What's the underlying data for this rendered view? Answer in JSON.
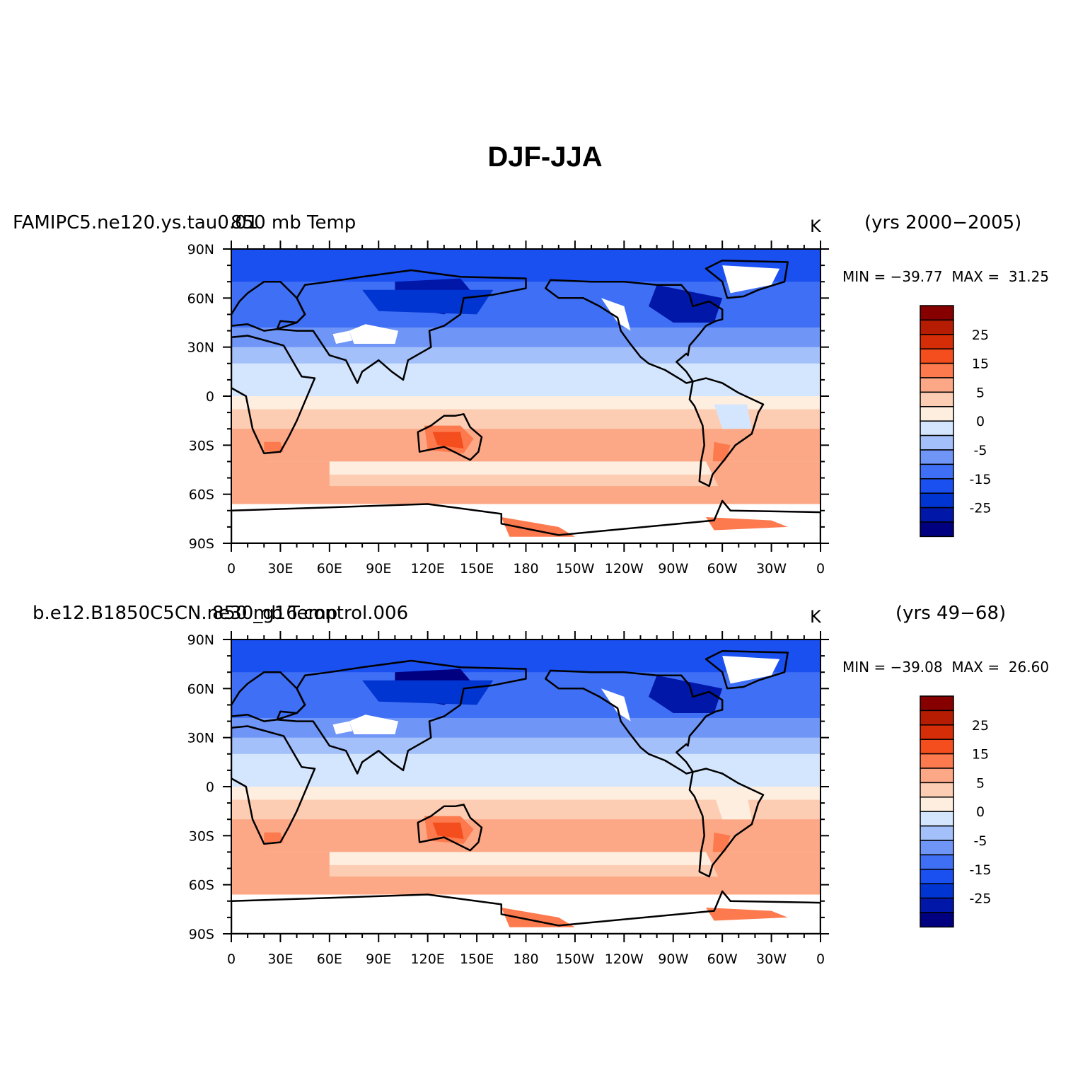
{
  "title": "DJF-JJA",
  "colors": {
    "levels": [
      "#000080",
      "#0017a8",
      "#0035d1",
      "#1a4ff0",
      "#3f6ff5",
      "#6f95f7",
      "#a4c0fa",
      "#d4e6fd",
      "#fdeee0",
      "#fdcdb3",
      "#fca886",
      "#fc7a4e",
      "#f44d1e",
      "#d52d07",
      "#b51c02",
      "#860000"
    ]
  },
  "legend": {
    "labels": [
      "25",
      "15",
      "5",
      "0",
      "-5",
      "-15",
      "-25"
    ]
  },
  "axes": {
    "y_labels": [
      "90N",
      "60N",
      "30N",
      "0",
      "30S",
      "60S",
      "90S"
    ],
    "x_labels": [
      "0",
      "30E",
      "60E",
      "90E",
      "120E",
      "150E",
      "180",
      "150W",
      "120W",
      "90W",
      "60W",
      "30W",
      "0"
    ]
  },
  "panels": [
    {
      "case_name": "FAMIPC5.ne120.ys.tau0.01",
      "field": "850 mb  Temp",
      "units": "K",
      "years": "(yrs 2000−2005)",
      "min_label": "MIN = ",
      "min_value": "−39.77",
      "max_label": "MAX = ",
      "max_value": "31.25"
    },
    {
      "case_name": "b.e12.B1850C5CN.ne30_g16.control.006",
      "field": "850 mb  Temp",
      "units": "K",
      "years": "(yrs 49−68)",
      "min_label": "MIN = ",
      "min_value": "−39.08",
      "max_label": "MAX = ",
      "max_value": "26.60"
    }
  ]
}
